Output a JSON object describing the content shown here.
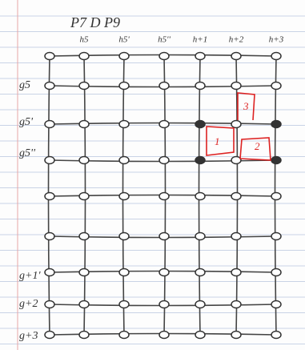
{
  "header": {
    "title": "P7 D P9"
  },
  "columns": [
    "h5",
    "h5'",
    "h5''",
    "h+1",
    "h+2",
    "h+3"
  ],
  "rows": [
    "g5",
    "g5'",
    "g5''",
    "g+1'",
    "g+2",
    "g+3"
  ],
  "annotations": [
    "1",
    "2",
    "3"
  ]
}
